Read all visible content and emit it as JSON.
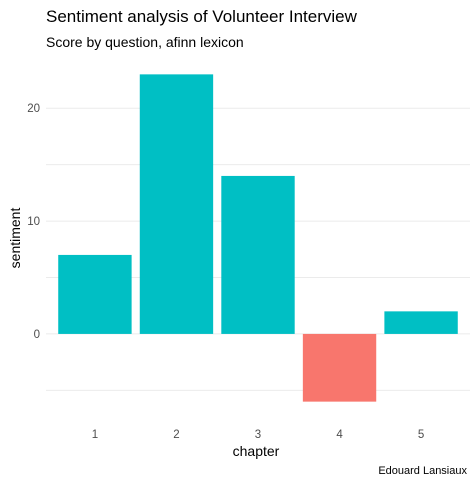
{
  "chart_data": {
    "type": "bar",
    "title": "Sentiment analysis of Volunteer Interview",
    "subtitle": "Score by question, afinn lexicon",
    "xlabel": "chapter",
    "ylabel": "sentiment",
    "caption": "Edouard Lansiaux",
    "categories": [
      "1",
      "2",
      "3",
      "4",
      "5"
    ],
    "values": [
      7,
      23,
      14,
      -6,
      2
    ],
    "ylim": [
      -6,
      23
    ],
    "yticks": [
      0,
      10,
      20
    ],
    "grid": true,
    "colors": {
      "positive": "#00BFC4",
      "negative": "#F8766D"
    }
  }
}
